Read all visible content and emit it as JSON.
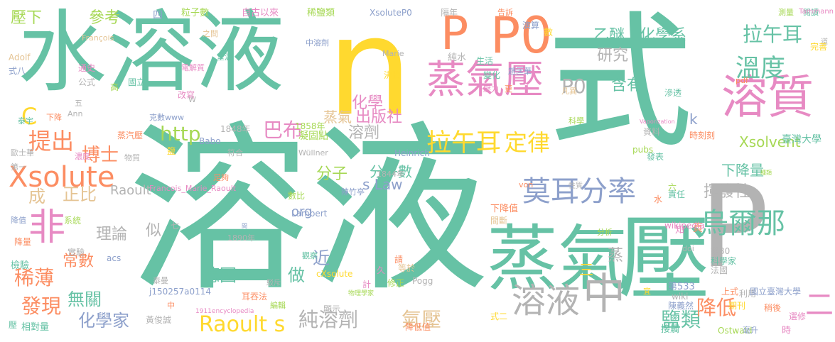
{
  "palette": {
    "teal": "#66c2a5",
    "orange": "#fc8d62",
    "blue": "#8da0cb",
    "pink": "#e78ac3",
    "lime": "#a6d854",
    "yellow": "#ffd92f",
    "tan": "#e5c494",
    "gray": "#b3b3b3"
  },
  "words": [
    {
      "text": "式",
      "color": "teal",
      "weight": 10
    },
    {
      "text": "溶液",
      "color": "teal",
      "weight": 10
    },
    {
      "text": "水溶液",
      "color": "teal",
      "weight": 8
    },
    {
      "text": "n",
      "color": "yellow",
      "weight": 9
    },
    {
      "text": "P",
      "color": "orange",
      "weight": 6
    },
    {
      "text": "P0",
      "color": "orange",
      "weight": 6
    },
    {
      "text": "蒸氣",
      "color": "teal",
      "weight": 7
    },
    {
      "text": "壓",
      "color": "teal",
      "weight": 7
    },
    {
      "text": "P",
      "color": "gray",
      "weight": 7
    },
    {
      "text": "蒸氣壓",
      "color": "pink",
      "weight": 5
    },
    {
      "text": "溶質",
      "color": "pink",
      "weight": 5
    },
    {
      "text": "中",
      "color": "gray",
      "weight": 6
    },
    {
      "text": "溶液",
      "color": "gray",
      "weight": 5
    },
    {
      "text": "Xsolute",
      "color": "orange",
      "weight": 4
    },
    {
      "text": "非",
      "color": "pink",
      "weight": 4
    },
    {
      "text": "莫耳分率",
      "color": "blue",
      "weight": 4
    },
    {
      "text": "烏爾那",
      "color": "teal",
      "weight": 4
    },
    {
      "text": "溫度",
      "color": "teal",
      "weight": 4
    },
    {
      "text": "拉午耳",
      "color": "teal",
      "weight": 3
    },
    {
      "text": "乙醚",
      "color": "teal",
      "weight": 3
    },
    {
      "text": "化學系",
      "color": "teal",
      "weight": 3
    },
    {
      "text": "研究",
      "color": "gray",
      "weight": 3
    },
    {
      "text": "P0",
      "color": "gray",
      "weight": 3
    },
    {
      "text": "含有",
      "color": "teal",
      "weight": 3
    },
    {
      "text": "拉午耳",
      "color": "yellow",
      "weight": 3
    },
    {
      "text": "定律",
      "color": "yellow",
      "weight": 3
    },
    {
      "text": "化學",
      "color": "pink",
      "weight": 3
    },
    {
      "text": "出版社",
      "color": "pink",
      "weight": 3
    },
    {
      "text": "蒸氣",
      "color": "tan",
      "weight": 3
    },
    {
      "text": "溶劑",
      "color": "gray",
      "weight": 3
    },
    {
      "text": "巴布",
      "color": "pink",
      "weight": 3
    },
    {
      "text": "http",
      "color": "lime",
      "weight": 3
    },
    {
      "text": "C",
      "color": "yellow",
      "weight": 3
    },
    {
      "text": "提出",
      "color": "orange",
      "weight": 3
    },
    {
      "text": "博士",
      "color": "orange",
      "weight": 3
    },
    {
      "text": "Raoult",
      "color": "gray",
      "weight": 2
    },
    {
      "text": "1848年",
      "color": "gray",
      "weight": 2
    },
    {
      "text": "1858年",
      "color": "lime",
      "weight": 2
    },
    {
      "text": "凝固點",
      "color": "lime",
      "weight": 2
    },
    {
      "text": "分子",
      "color": "lime",
      "weight": 3
    },
    {
      "text": "分子數",
      "color": "teal",
      "weight": 3
    },
    {
      "text": "s Law",
      "color": "blue",
      "weight": 3
    },
    {
      "text": "org",
      "color": "blue",
      "weight": 3
    },
    {
      "text": "Raoult s",
      "color": "yellow",
      "weight": 4
    },
    {
      "text": "純溶劑",
      "color": "gray",
      "weight": 3
    },
    {
      "text": "氣壓",
      "color": "tan",
      "weight": 3
    },
    {
      "text": "鹽類",
      "color": "teal",
      "weight": 3
    },
    {
      "text": "降低",
      "color": "orange",
      "weight": 3
    },
    {
      "text": "揮發性",
      "color": "gray",
      "weight": 3
    },
    {
      "text": "下降量",
      "color": "teal",
      "weight": 3
    },
    {
      "text": "Xsolvent",
      "color": "lime",
      "weight": 3
    },
    {
      "text": "臺灣大學",
      "color": "teal",
      "weight": 2
    },
    {
      "text": "成",
      "color": "tan",
      "weight": 3
    },
    {
      "text": "正比",
      "color": "tan",
      "weight": 3
    },
    {
      "text": "理論",
      "color": "gray",
      "weight": 3
    },
    {
      "text": "似",
      "color": "gray",
      "weight": 3
    },
    {
      "text": "常數",
      "color": "orange",
      "weight": 3
    },
    {
      "text": "稀薄",
      "color": "orange",
      "weight": 3
    },
    {
      "text": "發現",
      "color": "orange",
      "weight": 3
    },
    {
      "text": "無關",
      "color": "teal",
      "weight": 3
    },
    {
      "text": "化學家",
      "color": "blue",
      "weight": 3
    },
    {
      "text": "德國",
      "color": "teal",
      "weight": 3
    },
    {
      "text": "做",
      "color": "teal",
      "weight": 3
    },
    {
      "text": "近",
      "color": "blue",
      "weight": 3
    },
    {
      "text": "蒸",
      "color": "gray",
      "weight": 3
    },
    {
      "text": "三",
      "color": "yellow",
      "weight": 3
    },
    {
      "text": "二",
      "color": "pink",
      "weight": 3
    },
    {
      "text": "頁",
      "color": "orange",
      "weight": 2
    },
    {
      "text": "k",
      "color": "blue",
      "weight": 2
    },
    {
      "text": "壓下",
      "color": "lime",
      "weight": 2
    },
    {
      "text": "參考",
      "color": "lime",
      "weight": 2
    },
    {
      "text": "四",
      "color": "blue",
      "weight": 2
    },
    {
      "text": "粒子數",
      "color": "lime",
      "weight": 1
    },
    {
      "text": "自古以來",
      "color": "pink",
      "weight": 1
    },
    {
      "text": "稀鹽類",
      "color": "lime",
      "weight": 1
    },
    {
      "text": "XsoluteP0",
      "color": "blue",
      "weight": 1
    },
    {
      "text": "隔年",
      "color": "gray",
      "weight": 1
    },
    {
      "text": "告訴",
      "color": "orange",
      "weight": 1
    },
    {
      "text": "演算",
      "color": "blue",
      "weight": 1
    },
    {
      "text": "數",
      "color": "yellow",
      "weight": 1
    },
    {
      "text": "測量",
      "color": "lime",
      "weight": 1
    },
    {
      "text": "閱讀",
      "color": "teal",
      "weight": 1
    },
    {
      "text": "Tammann",
      "color": "pink",
      "weight": 1
    },
    {
      "text": "道",
      "color": "gray",
      "weight": 1
    },
    {
      "text": "完善",
      "color": "yellow",
      "weight": 1
    },
    {
      "text": "François",
      "color": "tan",
      "weight": 1
    },
    {
      "text": "之間",
      "color": "tan",
      "weight": 1
    },
    {
      "text": "室溫",
      "color": "teal",
      "weight": 1
    },
    {
      "text": "中溶劑",
      "color": "blue",
      "weight": 1
    },
    {
      "text": "Marie",
      "color": "gray",
      "weight": 1
    },
    {
      "text": "純水",
      "color": "gray",
      "weight": 1
    },
    {
      "text": "生活",
      "color": "teal",
      "weight": 1
    },
    {
      "text": "變化",
      "color": "teal",
      "weight": 1
    },
    {
      "text": "趙匡華",
      "color": "blue",
      "weight": 1
    },
    {
      "text": "Vaporization",
      "color": "pink",
      "weight": 1
    },
    {
      "text": "Adolf",
      "color": "tan",
      "weight": 1
    },
    {
      "text": "通史",
      "color": "pink",
      "weight": 1
    },
    {
      "text": "式八",
      "color": "blue",
      "weight": 1
    },
    {
      "text": "公式",
      "color": "gray",
      "weight": 1
    },
    {
      "text": "國立",
      "color": "teal",
      "weight": 1
    },
    {
      "text": "電解質",
      "color": "pink",
      "weight": 1
    },
    {
      "text": "沸騰",
      "color": "yellow",
      "weight": 1
    },
    {
      "text": "高",
      "color": "lime",
      "weight": 1
    },
    {
      "text": "改寫",
      "color": "pink",
      "weight": 1
    },
    {
      "text": "W",
      "color": "gray",
      "weight": 1
    },
    {
      "text": "壓力",
      "color": "pink",
      "weight": 1
    },
    {
      "text": "更",
      "color": "orange",
      "weight": 1
    },
    {
      "text": "凡異",
      "color": "tan",
      "weight": 1
    },
    {
      "text": "pdf",
      "color": "orange",
      "weight": 1
    },
    {
      "text": "滲透",
      "color": "teal",
      "weight": 1
    },
    {
      "text": "五",
      "color": "gray",
      "weight": 1
    },
    {
      "text": "克數www",
      "color": "blue",
      "weight": 1
    },
    {
      "text": "Ann",
      "color": "gray",
      "weight": 1
    },
    {
      "text": "下降",
      "color": "orange",
      "weight": 1
    },
    {
      "text": "泰宇",
      "color": "teal",
      "weight": 1
    },
    {
      "text": "科學",
      "color": "lime",
      "weight": 1
    },
    {
      "text": "資料",
      "color": "gray",
      "weight": 1
    },
    {
      "text": "時刻刻",
      "color": "orange",
      "weight": 1
    },
    {
      "text": "pubs",
      "color": "lime",
      "weight": 1
    },
    {
      "text": "蒸汽壓",
      "color": "orange",
      "weight": 1
    },
    {
      "text": "Babo",
      "color": "blue",
      "weight": 1
    },
    {
      "text": "符合",
      "color": "gray",
      "weight": 1
    },
    {
      "text": "Wüllner",
      "color": "gray",
      "weight": 1
    },
    {
      "text": "歐士華",
      "color": "gray",
      "weight": 1
    },
    {
      "text": "濃度",
      "color": "pink",
      "weight": 1
    },
    {
      "text": "物質",
      "color": "gray",
      "weight": 1
    },
    {
      "text": "鹽",
      "color": "yellow",
      "weight": 1
    },
    {
      "text": "Heinrich",
      "color": "blue",
      "weight": 1
    },
    {
      "text": "發表",
      "color": "teal",
      "weight": 1
    },
    {
      "text": "第一",
      "color": "gray",
      "weight": 1
    },
    {
      "text": "足夠",
      "color": "orange",
      "weight": 1
    },
    {
      "text": "1844年",
      "color": "gray",
      "weight": 1
    },
    {
      "text": "種類",
      "color": "lime",
      "weight": 1
    },
    {
      "text": "Francois_Marie_Raoult",
      "color": "pink",
      "weight": 1
    },
    {
      "text": "數比",
      "color": "lime",
      "weight": 1
    },
    {
      "text": "陳竹亭",
      "color": "blue",
      "weight": 1
    },
    {
      "text": "von",
      "color": "orange",
      "weight": 1
    },
    {
      "text": "性質",
      "color": "gray",
      "weight": 1
    },
    {
      "text": "六",
      "color": "lime",
      "weight": 1
    },
    {
      "text": "水",
      "color": "orange",
      "weight": 1
    },
    {
      "text": "責任",
      "color": "teal",
      "weight": 1
    },
    {
      "text": "降值",
      "color": "blue",
      "weight": 1
    },
    {
      "text": "系統",
      "color": "lime",
      "weight": 1
    },
    {
      "text": "Lambert",
      "color": "blue",
      "weight": 1
    },
    {
      "text": "下降值",
      "color": "orange",
      "weight": 1
    },
    {
      "text": "間斷",
      "color": "tan",
      "weight": 1
    },
    {
      "text": "降量",
      "color": "orange",
      "weight": 1
    },
    {
      "text": "七",
      "color": "gray",
      "weight": 1
    },
    {
      "text": "間",
      "color": "blue",
      "weight": 1
    },
    {
      "text": "wikipedia",
      "color": "pink",
      "weight": 1
    },
    {
      "text": "知",
      "color": "pink",
      "weight": 1
    },
    {
      "text": "1890年",
      "color": "gray",
      "weight": 1
    },
    {
      "text": "分析",
      "color": "lime",
      "weight": 1
    },
    {
      "text": "實驗",
      "color": "gray",
      "weight": 1
    },
    {
      "text": "acs",
      "color": "blue",
      "weight": 1
    },
    {
      "text": "第80",
      "color": "gray",
      "weight": 1
    },
    {
      "text": "科學家",
      "color": "teal",
      "weight": 1
    },
    {
      "text": "觀察",
      "color": "teal",
      "weight": 1
    },
    {
      "text": "請",
      "color": "orange",
      "weight": 1
    },
    {
      "text": "doi",
      "color": "gray",
      "weight": 1
    },
    {
      "text": "檢驗",
      "color": "teal",
      "weight": 1
    },
    {
      "text": "cXsolute",
      "color": "yellow",
      "weight": 1
    },
    {
      "text": "等於",
      "color": "tan",
      "weight": 1
    },
    {
      "text": "Pogg",
      "color": "gray",
      "weight": 1
    },
    {
      "text": "法國",
      "color": "gray",
      "weight": 1
    },
    {
      "text": "上式",
      "color": "orange",
      "weight": 1
    },
    {
      "text": "泰曼",
      "color": "gray",
      "weight": 1
    },
    {
      "text": "駁斥",
      "color": "gray",
      "weight": 1
    },
    {
      "text": "計",
      "color": "pink",
      "weight": 1
    },
    {
      "text": "修正",
      "color": "lime",
      "weight": 1
    },
    {
      "text": "第533",
      "color": "blue",
      "weight": 1
    },
    {
      "text": "宜",
      "color": "yellow",
      "weight": 1
    },
    {
      "text": "j150257a0114",
      "color": "blue",
      "weight": 1
    },
    {
      "text": "耳吞法",
      "color": "orange",
      "weight": 1
    },
    {
      "text": "物理學家",
      "color": "lime",
      "weight": 1
    },
    {
      "text": "wiki",
      "color": "gray",
      "weight": 1
    },
    {
      "text": "陳義然",
      "color": "blue",
      "weight": 1
    },
    {
      "text": "利用",
      "color": "gray",
      "weight": 1
    },
    {
      "text": "國立臺灣大學",
      "color": "blue",
      "weight": 1
    },
    {
      "text": "中",
      "color": "orange",
      "weight": 1
    },
    {
      "text": "1911encyclopedia",
      "color": "pink",
      "weight": 1
    },
    {
      "text": "編輯",
      "color": "lime",
      "weight": 1
    },
    {
      "text": "顯示",
      "color": "gray",
      "weight": 1
    },
    {
      "text": "期刊",
      "color": "yellow",
      "weight": 1
    },
    {
      "text": "稍後",
      "color": "orange",
      "weight": 1
    },
    {
      "text": "壓",
      "color": "teal",
      "weight": 1
    },
    {
      "text": "相對量",
      "color": "teal",
      "weight": 1
    },
    {
      "text": "黃俊誠",
      "color": "gray",
      "weight": 1
    },
    {
      "text": "降低值",
      "color": "orange",
      "weight": 1
    },
    {
      "text": "式二",
      "color": "yellow",
      "weight": 1
    },
    {
      "text": "接觸",
      "color": "teal",
      "weight": 1
    },
    {
      "text": "Ostwald",
      "color": "lime",
      "weight": 1
    },
    {
      "text": "時",
      "color": "pink",
      "weight": 1
    },
    {
      "text": "毫升",
      "color": "blue",
      "weight": 1
    },
    {
      "text": "選修",
      "color": "pink",
      "weight": 1
    },
    {
      "text": "久",
      "color": "pink",
      "weight": 1
    }
  ]
}
